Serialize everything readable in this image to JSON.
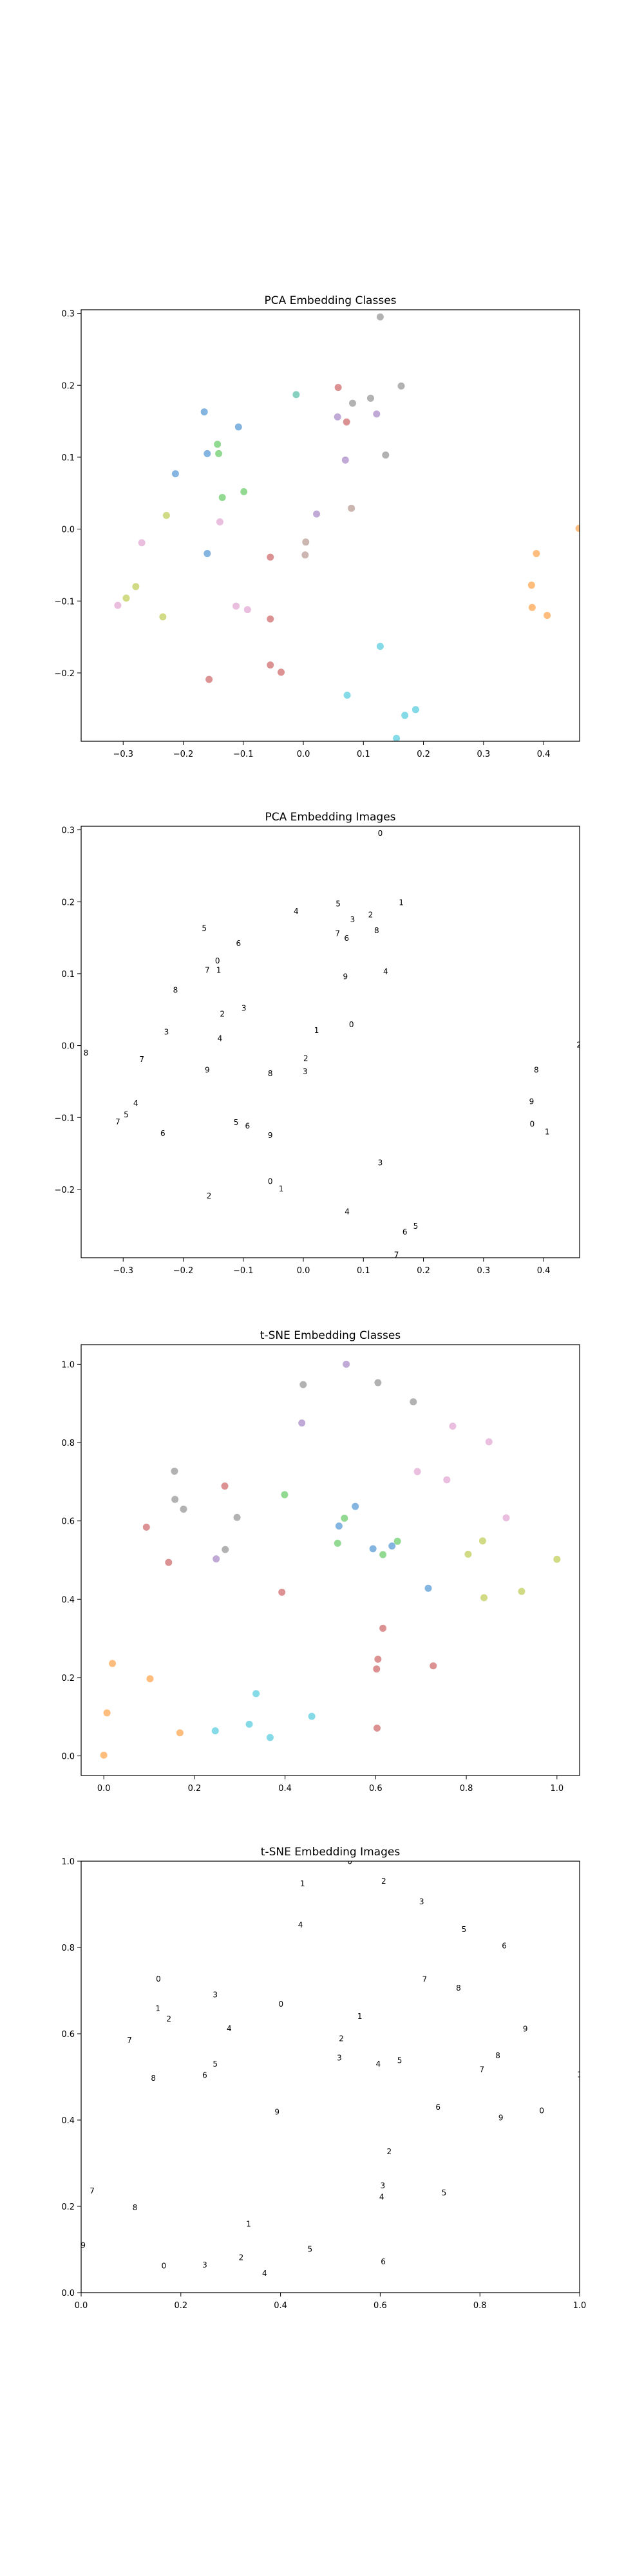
{
  "chart_data": [
    {
      "type": "scatter",
      "title": "PCA Embedding Classes",
      "xlabel": "",
      "ylabel": "",
      "xlim": [
        -0.37,
        0.46
      ],
      "ylim": [
        -0.295,
        0.305
      ],
      "xticks": [
        -0.3,
        -0.2,
        -0.1,
        0.0,
        0.1,
        0.2,
        0.3,
        0.4
      ],
      "yticks": [
        -0.2,
        -0.1,
        0.0,
        0.1,
        0.2,
        0.3
      ],
      "xtick_labels": [
        "−0.3",
        "−0.2",
        "−0.1",
        "0.0",
        "0.1",
        "0.2",
        "0.3",
        "0.4"
      ],
      "ytick_labels": [
        "−0.2",
        "−0.1",
        "0.0",
        "0.1",
        "0.2",
        "0.3"
      ],
      "grid": false,
      "marker": "dot",
      "points": [
        {
          "x": 0.128,
          "y": 0.295,
          "color": "#a5a5a5"
        },
        {
          "x": 0.163,
          "y": 0.199,
          "color": "#a5a5a5"
        },
        {
          "x": 0.112,
          "y": 0.182,
          "color": "#a5a5a5"
        },
        {
          "x": 0.082,
          "y": 0.175,
          "color": "#a5a5a5"
        },
        {
          "x": 0.137,
          "y": 0.103,
          "color": "#a5a5a5"
        },
        {
          "x": 0.058,
          "y": 0.197,
          "color": "#d67f7f"
        },
        {
          "x": 0.072,
          "y": 0.149,
          "color": "#d67f7f"
        },
        {
          "x": 0.057,
          "y": 0.156,
          "color": "#b59ad0"
        },
        {
          "x": 0.122,
          "y": 0.16,
          "color": "#b59ad0"
        },
        {
          "x": 0.07,
          "y": 0.096,
          "color": "#b59ad0"
        },
        {
          "x": 0.08,
          "y": 0.029,
          "color": "#c2a9a3"
        },
        {
          "x": 0.022,
          "y": 0.021,
          "color": "#b59ad0"
        },
        {
          "x": 0.004,
          "y": -0.018,
          "color": "#c2a9a3"
        },
        {
          "x": 0.003,
          "y": -0.036,
          "color": "#c2a9a3"
        },
        {
          "x": -0.012,
          "y": 0.187,
          "color": "#72c9b5"
        },
        {
          "x": -0.165,
          "y": 0.163,
          "color": "#6fa8dc"
        },
        {
          "x": -0.108,
          "y": 0.142,
          "color": "#6fa8dc"
        },
        {
          "x": -0.16,
          "y": 0.105,
          "color": "#6fa8dc"
        },
        {
          "x": -0.213,
          "y": 0.077,
          "color": "#6fa8dc"
        },
        {
          "x": -0.16,
          "y": -0.034,
          "color": "#6fa8dc"
        },
        {
          "x": -0.143,
          "y": 0.118,
          "color": "#7fd47f"
        },
        {
          "x": -0.141,
          "y": 0.105,
          "color": "#7fd47f"
        },
        {
          "x": -0.135,
          "y": 0.044,
          "color": "#7fd47f"
        },
        {
          "x": -0.099,
          "y": 0.052,
          "color": "#7fd47f"
        },
        {
          "x": -0.139,
          "y": 0.01,
          "color": "#e6b3d8"
        },
        {
          "x": -0.112,
          "y": -0.107,
          "color": "#e6b3d8"
        },
        {
          "x": -0.093,
          "y": -0.112,
          "color": "#e6b3d8"
        },
        {
          "x": -0.269,
          "y": -0.019,
          "color": "#e6b3d8"
        },
        {
          "x": -0.055,
          "y": -0.039,
          "color": "#d67f7f"
        },
        {
          "x": -0.055,
          "y": -0.125,
          "color": "#d67f7f"
        },
        {
          "x": -0.055,
          "y": -0.189,
          "color": "#d67f7f"
        },
        {
          "x": -0.037,
          "y": -0.199,
          "color": "#d67f7f"
        },
        {
          "x": -0.157,
          "y": -0.209,
          "color": "#d67f7f"
        },
        {
          "x": -0.228,
          "y": 0.019,
          "color": "#c9d46f"
        },
        {
          "x": -0.279,
          "y": -0.08,
          "color": "#c9d46f"
        },
        {
          "x": -0.295,
          "y": -0.096,
          "color": "#c9d46f"
        },
        {
          "x": -0.234,
          "y": -0.122,
          "color": "#c9d46f"
        },
        {
          "x": -0.309,
          "y": -0.106,
          "color": "#e6b3d8"
        },
        {
          "x": 0.388,
          "y": -0.034,
          "color": "#ffb266"
        },
        {
          "x": 0.38,
          "y": -0.078,
          "color": "#ffb266"
        },
        {
          "x": 0.381,
          "y": -0.109,
          "color": "#ffb266"
        },
        {
          "x": 0.406,
          "y": -0.12,
          "color": "#ffb266"
        },
        {
          "x": 0.459,
          "y": 0.001,
          "color": "#ffb266"
        },
        {
          "x": 0.128,
          "y": -0.163,
          "color": "#6fd4e3"
        },
        {
          "x": 0.073,
          "y": -0.231,
          "color": "#6fd4e3"
        },
        {
          "x": 0.187,
          "y": -0.251,
          "color": "#6fd4e3"
        },
        {
          "x": 0.169,
          "y": -0.259,
          "color": "#6fd4e3"
        },
        {
          "x": 0.155,
          "y": -0.291,
          "color": "#6fd4e3"
        }
      ]
    },
    {
      "type": "scatter",
      "title": "PCA Embedding Images",
      "xlabel": "",
      "ylabel": "",
      "xlim": [
        -0.37,
        0.46
      ],
      "ylim": [
        -0.295,
        0.305
      ],
      "xticks": [
        -0.3,
        -0.2,
        -0.1,
        0.0,
        0.1,
        0.2,
        0.3,
        0.4
      ],
      "yticks": [
        -0.2,
        -0.1,
        0.0,
        0.1,
        0.2,
        0.3
      ],
      "xtick_labels": [
        "−0.3",
        "−0.2",
        "−0.1",
        "0.0",
        "0.1",
        "0.2",
        "0.3",
        "0.4"
      ],
      "ytick_labels": [
        "−0.2",
        "−0.1",
        "0.0",
        "0.1",
        "0.2",
        "0.3"
      ],
      "grid": false,
      "marker": "image-thumbnail",
      "points": [
        {
          "x": 0.128,
          "y": 0.295
        },
        {
          "x": 0.163,
          "y": 0.199
        },
        {
          "x": 0.112,
          "y": 0.182
        },
        {
          "x": 0.082,
          "y": 0.175
        },
        {
          "x": 0.137,
          "y": 0.103
        },
        {
          "x": 0.058,
          "y": 0.197
        },
        {
          "x": 0.072,
          "y": 0.149
        },
        {
          "x": 0.057,
          "y": 0.156
        },
        {
          "x": 0.122,
          "y": 0.16
        },
        {
          "x": 0.07,
          "y": 0.096
        },
        {
          "x": 0.08,
          "y": 0.029
        },
        {
          "x": 0.022,
          "y": 0.021
        },
        {
          "x": 0.004,
          "y": -0.018
        },
        {
          "x": 0.003,
          "y": -0.036
        },
        {
          "x": -0.012,
          "y": 0.187
        },
        {
          "x": -0.165,
          "y": 0.163
        },
        {
          "x": -0.108,
          "y": 0.142
        },
        {
          "x": -0.16,
          "y": 0.105
        },
        {
          "x": -0.213,
          "y": 0.077
        },
        {
          "x": -0.16,
          "y": -0.034
        },
        {
          "x": -0.143,
          "y": 0.118
        },
        {
          "x": -0.141,
          "y": 0.105
        },
        {
          "x": -0.135,
          "y": 0.044
        },
        {
          "x": -0.099,
          "y": 0.052
        },
        {
          "x": -0.139,
          "y": 0.01
        },
        {
          "x": -0.112,
          "y": -0.107
        },
        {
          "x": -0.093,
          "y": -0.112
        },
        {
          "x": -0.269,
          "y": -0.019
        },
        {
          "x": -0.055,
          "y": -0.039
        },
        {
          "x": -0.055,
          "y": -0.125
        },
        {
          "x": -0.055,
          "y": -0.189
        },
        {
          "x": -0.037,
          "y": -0.199
        },
        {
          "x": -0.157,
          "y": -0.209
        },
        {
          "x": -0.228,
          "y": 0.019
        },
        {
          "x": -0.279,
          "y": -0.08
        },
        {
          "x": -0.295,
          "y": -0.096
        },
        {
          "x": -0.234,
          "y": -0.122
        },
        {
          "x": -0.309,
          "y": -0.106
        },
        {
          "x": 0.388,
          "y": -0.034
        },
        {
          "x": 0.38,
          "y": -0.078
        },
        {
          "x": 0.381,
          "y": -0.109
        },
        {
          "x": 0.406,
          "y": -0.12
        },
        {
          "x": 0.459,
          "y": 0.001
        },
        {
          "x": 0.128,
          "y": -0.163
        },
        {
          "x": 0.073,
          "y": -0.231
        },
        {
          "x": 0.187,
          "y": -0.251
        },
        {
          "x": 0.169,
          "y": -0.259
        },
        {
          "x": 0.155,
          "y": -0.291
        },
        {
          "x": -0.362,
          "y": -0.01
        }
      ]
    },
    {
      "type": "scatter",
      "title": "t-SNE Embedding Classes",
      "xlabel": "",
      "ylabel": "",
      "xlim": [
        -0.05,
        1.05
      ],
      "ylim": [
        -0.05,
        1.05
      ],
      "xticks": [
        0.0,
        0.2,
        0.4,
        0.6,
        0.8,
        1.0
      ],
      "yticks": [
        0.0,
        0.2,
        0.4,
        0.6,
        0.8,
        1.0
      ],
      "xtick_labels": [
        "0.0",
        "0.2",
        "0.4",
        "0.6",
        "0.8",
        "1.0"
      ],
      "ytick_labels": [
        "0.0",
        "0.2",
        "0.4",
        "0.6",
        "0.8",
        "1.0"
      ],
      "grid": false,
      "marker": "dot",
      "points": [
        {
          "x": 0.535,
          "y": 1.0,
          "color": "#b59ad0"
        },
        {
          "x": 0.44,
          "y": 0.948,
          "color": "#a5a5a5"
        },
        {
          "x": 0.605,
          "y": 0.953,
          "color": "#a5a5a5"
        },
        {
          "x": 0.683,
          "y": 0.904,
          "color": "#a5a5a5"
        },
        {
          "x": 0.437,
          "y": 0.85,
          "color": "#b59ad0"
        },
        {
          "x": 0.77,
          "y": 0.842,
          "color": "#e6b3d8"
        },
        {
          "x": 0.85,
          "y": 0.802,
          "color": "#e6b3d8"
        },
        {
          "x": 0.692,
          "y": 0.726,
          "color": "#e6b3d8"
        },
        {
          "x": 0.757,
          "y": 0.705,
          "color": "#e6b3d8"
        },
        {
          "x": 0.888,
          "y": 0.608,
          "color": "#e6b3d8"
        },
        {
          "x": 0.156,
          "y": 0.727,
          "color": "#a5a5a5"
        },
        {
          "x": 0.157,
          "y": 0.655,
          "color": "#a5a5a5"
        },
        {
          "x": 0.176,
          "y": 0.63,
          "color": "#a5a5a5"
        },
        {
          "x": 0.267,
          "y": 0.689,
          "color": "#d67f7f"
        },
        {
          "x": 0.294,
          "y": 0.609,
          "color": "#a5a5a5"
        },
        {
          "x": 0.268,
          "y": 0.527,
          "color": "#a5a5a5"
        },
        {
          "x": 0.248,
          "y": 0.503,
          "color": "#b59ad0"
        },
        {
          "x": 0.094,
          "y": 0.584,
          "color": "#d67f7f"
        },
        {
          "x": 0.143,
          "y": 0.494,
          "color": "#d67f7f"
        },
        {
          "x": 0.393,
          "y": 0.418,
          "color": "#d67f7f"
        },
        {
          "x": 0.399,
          "y": 0.667,
          "color": "#7fd47f"
        },
        {
          "x": 0.555,
          "y": 0.637,
          "color": "#6fa8dc"
        },
        {
          "x": 0.531,
          "y": 0.607,
          "color": "#7fd47f"
        },
        {
          "x": 0.519,
          "y": 0.587,
          "color": "#6fa8dc"
        },
        {
          "x": 0.516,
          "y": 0.543,
          "color": "#7fd47f"
        },
        {
          "x": 0.594,
          "y": 0.529,
          "color": "#6fa8dc"
        },
        {
          "x": 0.616,
          "y": 0.514,
          "color": "#7fd47f"
        },
        {
          "x": 0.636,
          "y": 0.536,
          "color": "#6fa8dc"
        },
        {
          "x": 0.648,
          "y": 0.548,
          "color": "#7fd47f"
        },
        {
          "x": 0.716,
          "y": 0.428,
          "color": "#6fa8dc"
        },
        {
          "x": 0.836,
          "y": 0.549,
          "color": "#c9d46f"
        },
        {
          "x": 0.804,
          "y": 0.515,
          "color": "#c9d46f"
        },
        {
          "x": 0.839,
          "y": 0.404,
          "color": "#c9d46f"
        },
        {
          "x": 0.922,
          "y": 0.42,
          "color": "#c9d46f"
        },
        {
          "x": 1.0,
          "y": 0.502,
          "color": "#c9d46f"
        },
        {
          "x": 0.616,
          "y": 0.326,
          "color": "#d67f7f"
        },
        {
          "x": 0.605,
          "y": 0.247,
          "color": "#d67f7f"
        },
        {
          "x": 0.602,
          "y": 0.222,
          "color": "#d67f7f"
        },
        {
          "x": 0.727,
          "y": 0.23,
          "color": "#d67f7f"
        },
        {
          "x": 0.603,
          "y": 0.071,
          "color": "#d67f7f"
        },
        {
          "x": 0.019,
          "y": 0.236,
          "color": "#ffb266"
        },
        {
          "x": 0.102,
          "y": 0.197,
          "color": "#ffb266"
        },
        {
          "x": 0.007,
          "y": 0.11,
          "color": "#ffb266"
        },
        {
          "x": 0.0,
          "y": 0.002,
          "color": "#ffb266"
        },
        {
          "x": 0.168,
          "y": 0.059,
          "color": "#ffb266"
        },
        {
          "x": 0.336,
          "y": 0.159,
          "color": "#6fd4e3"
        },
        {
          "x": 0.321,
          "y": 0.081,
          "color": "#6fd4e3"
        },
        {
          "x": 0.246,
          "y": 0.064,
          "color": "#6fd4e3"
        },
        {
          "x": 0.367,
          "y": 0.047,
          "color": "#6fd4e3"
        },
        {
          "x": 0.459,
          "y": 0.101,
          "color": "#6fd4e3"
        }
      ]
    },
    {
      "type": "scatter",
      "title": "t-SNE Embedding Images",
      "xlabel": "",
      "ylabel": "",
      "xlim": [
        0.0,
        1.0
      ],
      "ylim": [
        0.0,
        1.0
      ],
      "xticks": [
        0.0,
        0.2,
        0.4,
        0.6,
        0.8,
        1.0
      ],
      "yticks": [
        0.0,
        0.2,
        0.4,
        0.6,
        0.8,
        1.0
      ],
      "xtick_labels": [
        "0.0",
        "0.2",
        "0.4",
        "0.6",
        "0.8",
        "1.0"
      ],
      "ytick_labels": [
        "0.0",
        "0.2",
        "0.4",
        "0.6",
        "0.8",
        "1.0"
      ],
      "grid": false,
      "marker": "image-thumbnail",
      "points": [
        {
          "x": 0.539,
          "y": 0.999
        },
        {
          "x": 0.444,
          "y": 0.948
        },
        {
          "x": 0.607,
          "y": 0.954
        },
        {
          "x": 0.683,
          "y": 0.906
        },
        {
          "x": 0.44,
          "y": 0.852
        },
        {
          "x": 0.768,
          "y": 0.842
        },
        {
          "x": 0.849,
          "y": 0.804
        },
        {
          "x": 0.689,
          "y": 0.726
        },
        {
          "x": 0.757,
          "y": 0.706
        },
        {
          "x": 0.891,
          "y": 0.611
        },
        {
          "x": 0.155,
          "y": 0.727
        },
        {
          "x": 0.154,
          "y": 0.658
        },
        {
          "x": 0.176,
          "y": 0.634
        },
        {
          "x": 0.269,
          "y": 0.69
        },
        {
          "x": 0.297,
          "y": 0.612
        },
        {
          "x": 0.269,
          "y": 0.53
        },
        {
          "x": 0.248,
          "y": 0.504
        },
        {
          "x": 0.097,
          "y": 0.585
        },
        {
          "x": 0.145,
          "y": 0.497
        },
        {
          "x": 0.393,
          "y": 0.419
        },
        {
          "x": 0.401,
          "y": 0.669
        },
        {
          "x": 0.559,
          "y": 0.64
        },
        {
          "x": 0.522,
          "y": 0.589
        },
        {
          "x": 0.518,
          "y": 0.544
        },
        {
          "x": 0.596,
          "y": 0.53
        },
        {
          "x": 0.639,
          "y": 0.538
        },
        {
          "x": 0.716,
          "y": 0.43
        },
        {
          "x": 0.804,
          "y": 0.517
        },
        {
          "x": 0.836,
          "y": 0.549
        },
        {
          "x": 0.842,
          "y": 0.405
        },
        {
          "x": 0.924,
          "y": 0.422
        },
        {
          "x": 1.0,
          "y": 0.505
        },
        {
          "x": 0.618,
          "y": 0.327
        },
        {
          "x": 0.605,
          "y": 0.248
        },
        {
          "x": 0.603,
          "y": 0.222
        },
        {
          "x": 0.728,
          "y": 0.231
        },
        {
          "x": 0.606,
          "y": 0.072
        },
        {
          "x": 0.022,
          "y": 0.236
        },
        {
          "x": 0.108,
          "y": 0.197
        },
        {
          "x": 0.004,
          "y": 0.11
        },
        {
          "x": 0.166,
          "y": 0.062
        },
        {
          "x": 0.336,
          "y": 0.159
        },
        {
          "x": 0.321,
          "y": 0.081
        },
        {
          "x": 0.248,
          "y": 0.064
        },
        {
          "x": 0.368,
          "y": 0.045
        },
        {
          "x": 0.459,
          "y": 0.101
        }
      ]
    }
  ]
}
